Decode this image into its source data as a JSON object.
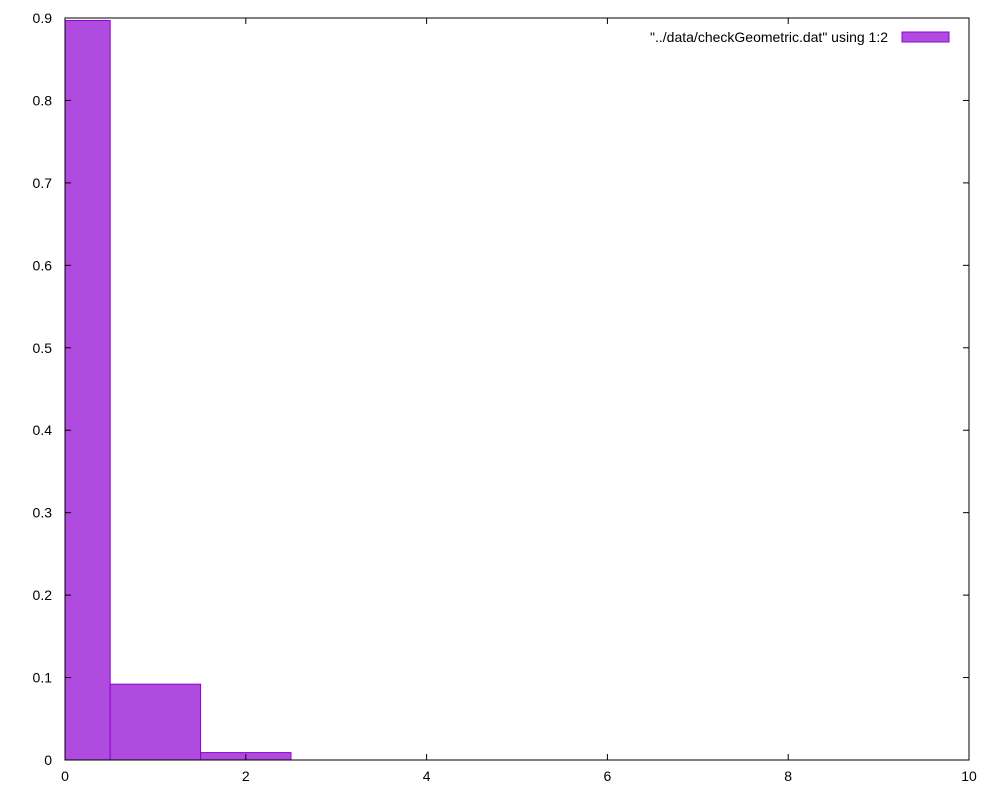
{
  "chart_data": {
    "type": "bar",
    "title": "",
    "xlabel": "",
    "ylabel": "",
    "xlim": [
      0,
      10
    ],
    "ylim": [
      0,
      0.9
    ],
    "x_ticks": [
      0,
      2,
      4,
      6,
      8,
      10
    ],
    "y_ticks": [
      0,
      0.1,
      0.2,
      0.3,
      0.4,
      0.5,
      0.6,
      0.7,
      0.8,
      0.9
    ],
    "grid": false,
    "legend_position": "top-right",
    "colors": {
      "bar_fill": "#b04be0",
      "bar_stroke": "#9400d3",
      "frame": "#000000"
    },
    "series": [
      {
        "name": "\"../data/checkGeometric.dat\" using 1:2",
        "bars": [
          {
            "x_start": 0,
            "x_end": 0.5,
            "value": 0.897
          },
          {
            "x_start": 0.5,
            "x_end": 1.5,
            "value": 0.092
          },
          {
            "x_start": 1.5,
            "x_end": 2.5,
            "value": 0.009
          }
        ]
      }
    ]
  }
}
